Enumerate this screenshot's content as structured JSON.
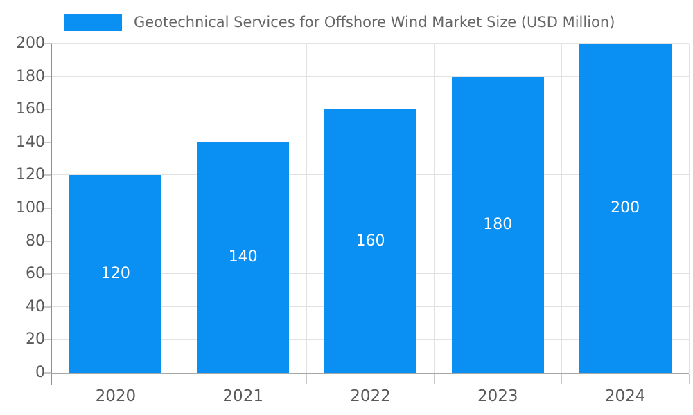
{
  "chart_data": {
    "type": "bar",
    "title": "Geotechnical Services for Offshore Wind Market Size (USD Million)",
    "categories": [
      "2020",
      "2021",
      "2022",
      "2023",
      "2024"
    ],
    "values": [
      120,
      140,
      160,
      180,
      200
    ],
    "bar_value_labels": [
      "120",
      "140",
      "160",
      "180",
      "200"
    ],
    "xlabel": "",
    "ylabel": "",
    "ylim": [
      0,
      200
    ],
    "yticks": [
      0,
      20,
      40,
      60,
      80,
      100,
      120,
      140,
      160,
      180,
      200
    ],
    "grid": true,
    "legend_position": "top-left",
    "colors": {
      "bar": "#0a90f2",
      "bar_label": "#ffffff",
      "grid": "#e2e2e2",
      "axis_y": "#8f8f8f",
      "axis_x": "#a6a6a6",
      "tick": "#c9c9c9",
      "tick_label": "#595959",
      "title": "#666666",
      "background": "#ffffff"
    }
  }
}
